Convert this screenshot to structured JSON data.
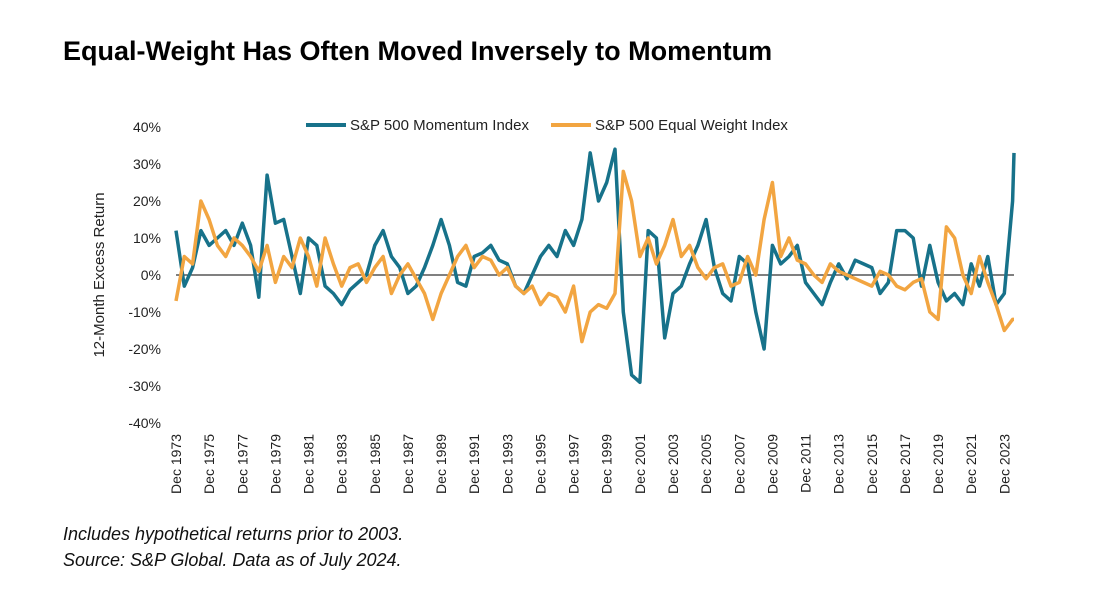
{
  "chart_data": {
    "type": "line",
    "title": "Equal-Weight Has Often Moved Inversely to Momentum",
    "y_label": "12-Month Excess Return",
    "notes": [
      "Includes hypothetical returns prior to 2003.",
      "Source: S&P Global. Data as of July 2024."
    ],
    "x": [
      "Dec 1973",
      "Jun 1974",
      "Dec 1974",
      "Jun 1975",
      "Dec 1975",
      "Jun 1976",
      "Dec 1976",
      "Jun 1977",
      "Dec 1977",
      "Jun 1978",
      "Dec 1978",
      "Jun 1979",
      "Dec 1979",
      "Jun 1980",
      "Dec 1980",
      "Jun 1981",
      "Dec 1981",
      "Jun 1982",
      "Dec 1982",
      "Jun 1983",
      "Dec 1983",
      "Jun 1984",
      "Dec 1984",
      "Jun 1985",
      "Dec 1985",
      "Jun 1986",
      "Dec 1986",
      "Jun 1987",
      "Dec 1987",
      "Jun 1988",
      "Dec 1988",
      "Jun 1989",
      "Dec 1989",
      "Jun 1990",
      "Dec 1990",
      "Jun 1991",
      "Dec 1991",
      "Jun 1992",
      "Dec 1992",
      "Jun 1993",
      "Dec 1993",
      "Jun 1994",
      "Dec 1994",
      "Jun 1995",
      "Dec 1995",
      "Jun 1996",
      "Dec 1996",
      "Jun 1997",
      "Dec 1997",
      "Jun 1998",
      "Dec 1998",
      "Jun 1999",
      "Dec 1999",
      "Jun 2000",
      "Dec 2000",
      "Jun 2001",
      "Dec 2001",
      "Jun 2002",
      "Dec 2002",
      "Jun 2003",
      "Dec 2003",
      "Jun 2004",
      "Dec 2004",
      "Jun 2005",
      "Dec 2005",
      "Jun 2006",
      "Dec 2006",
      "Jun 2007",
      "Dec 2007",
      "Jun 2008",
      "Dec 2008",
      "Jun 2009",
      "Dec 2009",
      "Jun 2010",
      "Dec 2010",
      "Jun 2011",
      "Dec 2011",
      "Jun 2012",
      "Dec 2012",
      "Jun 2013",
      "Dec 2013",
      "Jun 2014",
      "Dec 2014",
      "Jun 2015",
      "Dec 2015",
      "Jun 2016",
      "Dec 2016",
      "Jun 2017",
      "Dec 2017",
      "Jun 2018",
      "Dec 2018",
      "Jun 2019",
      "Dec 2019",
      "Jun 2020",
      "Dec 2020",
      "Jun 2021",
      "Dec 2021",
      "Jun 2022",
      "Dec 2022",
      "Jun 2023",
      "Dec 2023",
      "Jun 2024",
      "Jul 2024"
    ],
    "series": [
      {
        "name": "S&P 500 Momentum Index",
        "color": "#17728a",
        "values": [
          12,
          -3,
          2,
          12,
          8,
          10,
          12,
          8,
          14,
          8,
          -6,
          27,
          14,
          15,
          5,
          -5,
          10,
          8,
          -3,
          -5,
          -8,
          -4,
          -2,
          0,
          8,
          12,
          5,
          2,
          -5,
          -3,
          2,
          8,
          15,
          8,
          -2,
          -3,
          5,
          6,
          8,
          4,
          3,
          -3,
          -5,
          0,
          5,
          8,
          5,
          12,
          8,
          15,
          33,
          20,
          25,
          34,
          -10,
          -27,
          -29,
          12,
          10,
          -17,
          -5,
          -3,
          3,
          8,
          15,
          2,
          -5,
          -7,
          5,
          3,
          -10,
          -20,
          8,
          3,
          5,
          8,
          -2,
          -5,
          -8,
          -2,
          3,
          -1,
          4,
          3,
          2,
          -5,
          -2,
          12,
          12,
          10,
          -3,
          8,
          -2,
          -7,
          -5,
          -8,
          3,
          -3,
          5,
          -8,
          -5,
          20,
          33
        ]
      },
      {
        "name": "S&P 500 Equal Weight Index",
        "color": "#f2a541",
        "values": [
          -7,
          5,
          3,
          20,
          15,
          8,
          5,
          10,
          8,
          5,
          1,
          8,
          -2,
          5,
          2,
          10,
          5,
          -3,
          10,
          3,
          -3,
          2,
          3,
          -2,
          2,
          5,
          -5,
          0,
          3,
          -1,
          -5,
          -12,
          -5,
          0,
          5,
          8,
          2,
          5,
          4,
          0,
          2,
          -3,
          -5,
          -3,
          -8,
          -5,
          -6,
          -10,
          -3,
          -18,
          -10,
          -8,
          -9,
          -5,
          28,
          20,
          5,
          10,
          3,
          8,
          15,
          5,
          8,
          2,
          -1,
          2,
          3,
          -3,
          -2,
          5,
          0,
          15,
          25,
          5,
          10,
          4,
          3,
          0,
          -2,
          3,
          1,
          0,
          -1,
          -2,
          -3,
          1,
          0,
          -3,
          -4,
          -2,
          -1,
          -10,
          -12,
          13,
          10,
          0,
          -5,
          5,
          -2,
          -8,
          -15,
          -12,
          -12
        ]
      }
    ],
    "xlim": [
      "Dec 1973",
      "Jul 2024"
    ],
    "xticks": [
      "Dec 1973",
      "Dec 1975",
      "Dec 1977",
      "Dec 1979",
      "Dec 1981",
      "Dec 1983",
      "Dec 1985",
      "Dec 1987",
      "Dec 1989",
      "Dec 1991",
      "Dec 1993",
      "Dec 1995",
      "Dec 1997",
      "Dec 1999",
      "Dec 2001",
      "Dec 2003",
      "Dec 2005",
      "Dec 2007",
      "Dec 2009",
      "Dec 2011",
      "Dec 2013",
      "Dec 2015",
      "Dec 2017",
      "Dec 2019",
      "Dec 2021",
      "Dec 2023"
    ],
    "ylim": [
      -40,
      40
    ],
    "yticks": [
      {
        "value": 40,
        "label": "40%"
      },
      {
        "value": 30,
        "label": "30%"
      },
      {
        "value": 20,
        "label": "20%"
      },
      {
        "value": 10,
        "label": "10%"
      },
      {
        "value": 0,
        "label": "0%"
      },
      {
        "value": -10,
        "label": "-10%"
      },
      {
        "value": -20,
        "label": "-20%"
      },
      {
        "value": -30,
        "label": "-30%"
      },
      {
        "value": -40,
        "label": "-40%"
      }
    ],
    "zero_line": true,
    "legend": "top"
  }
}
